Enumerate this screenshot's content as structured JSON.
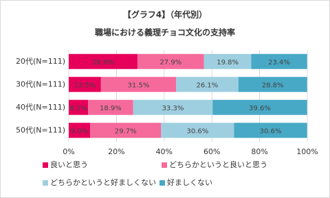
{
  "chart_data": {
    "type": "stacked-bar-horizontal",
    "title": "【グラフ4】（年代別）",
    "subtitle": "職場における義理チョコ文化の支持率",
    "categories": [
      "20代(N=111)",
      "30代(N=111)",
      "40代(N=111)",
      "50代(N=111)"
    ],
    "series": [
      {
        "name": "良いと思う",
        "color": "#e6005a",
        "values": [
          28.8,
          13.5,
          8.1,
          9.0
        ],
        "value_labels": [
          "28.8%",
          "13.5%",
          "8.1%",
          "9.0%"
        ]
      },
      {
        "name": "どちらかというと良いと思う",
        "color": "#f56a9b",
        "values": [
          27.9,
          31.5,
          18.9,
          29.7
        ],
        "value_labels": [
          "27.9%",
          "31.5%",
          "18.9%",
          "29.7%"
        ]
      },
      {
        "name": "どちらかというと好ましくない",
        "color": "#9ecfe0",
        "values": [
          19.8,
          26.1,
          33.3,
          30.6
        ],
        "value_labels": [
          "19.8%",
          "26.1%",
          "33.3%",
          "30.6%"
        ]
      },
      {
        "name": "好ましくない",
        "color": "#47a9c6",
        "values": [
          23.4,
          28.8,
          39.6,
          30.6
        ],
        "value_labels": [
          "23.4%",
          "28.8%",
          "39.6%",
          "30.6%"
        ]
      }
    ],
    "xlim": [
      0,
      100
    ],
    "xticks": [
      {
        "value": 0,
        "label": "0%"
      },
      {
        "value": 20,
        "label": "20%"
      },
      {
        "value": 40,
        "label": "40%"
      },
      {
        "value": 60,
        "label": "60%"
      },
      {
        "value": 80,
        "label": "80%"
      },
      {
        "value": 100,
        "label": "100%"
      }
    ],
    "grid": true
  }
}
